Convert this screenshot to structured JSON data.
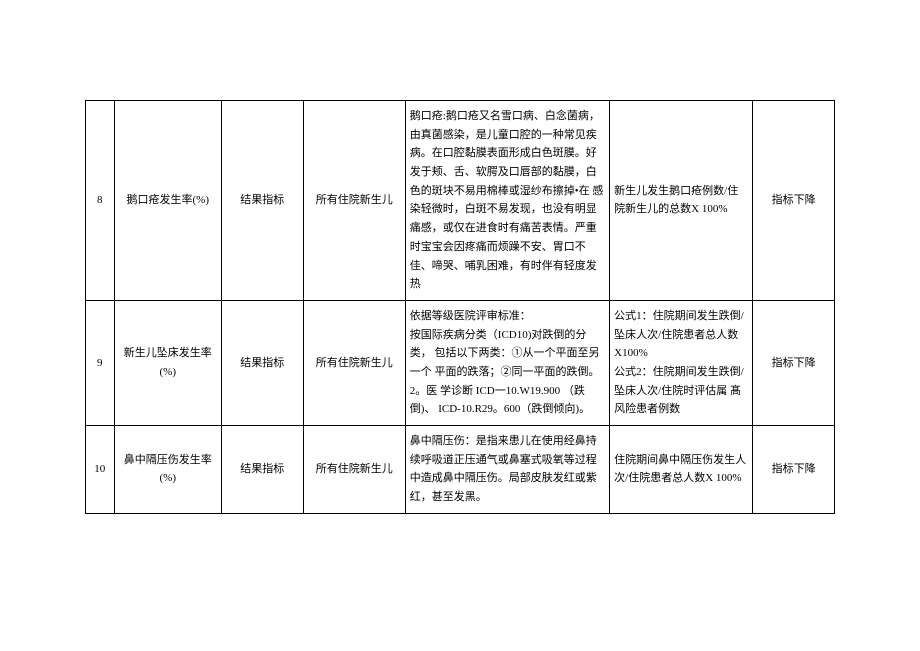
{
  "table": {
    "rows": [
      {
        "num": "8",
        "name": "鹅口疮发生率(%)",
        "type": "结果指标",
        "scope": "所有住院新生儿",
        "desc": "鹅口疮:鹅口疮又名雪口病、白念菌病，  由真菌感染，是儿童口腔的一种常见疾 病。在口腔黏膜表面形成白色斑膜。好 发于颊、舌、软腭及口唇部的黏膜，白 色的斑块不易用棉棒或湿纱布擦掉•在 感染轻微时，白斑不易发现，也没有明显 痛感，或仅在进食时有痛苦表情。严重 时宝宝会因疼痛而烦躁不安、胃口不佳、啼哭、哺乳困难，有时伴有轻度发热",
        "formula": "新生儿发生鹅口疮例数/住院新生儿的总数X 100%",
        "trend": "指标下降"
      },
      {
        "num": "9",
        "name": "新生儿坠床发生率(%)",
        "type": "结果指标",
        "scope": "所有住院新生儿",
        "desc": "依据等级医院评审标准：\n按国际疾病分类（ICD10)对跌倒的分类，  包括以下两类：①从一个平面至另一个 平面的跌落；②同一平面的跌倒。2。医 学诊断 ICD一10.W19.900 （跌倒)、 ICD-10.R29。600（跌倒倾向)。",
        "formula": "公式1：住院期间发生跌倒/坠床人次/住院患者总人数X100%\n公式2：住院期间发生跌倒/坠床人次/住院时评估属 髙风险患者例数",
        "trend": "指标下降"
      },
      {
        "num": "10",
        "name": "鼻中隔压伤发生率(%)",
        "type": "结果指标",
        "scope": "所有住院新生儿",
        "desc": "鼻中隔压伤：是指来患儿在使用经鼻持续呼吸道正压通气或鼻塞式吸氧等过程中造成鼻中隔压伤。局部皮肤发红或紫红，甚至发黑。",
        "formula": "住院期间鼻中隔压伤发生人次/住院患者总人数X 100%",
        "trend": "指标下降"
      }
    ]
  },
  "colors": {
    "border": "#000000",
    "text": "#000000",
    "background": "#ffffff"
  },
  "typography": {
    "font_family": "SimSun",
    "font_size": 11,
    "line_height": 1.7
  }
}
